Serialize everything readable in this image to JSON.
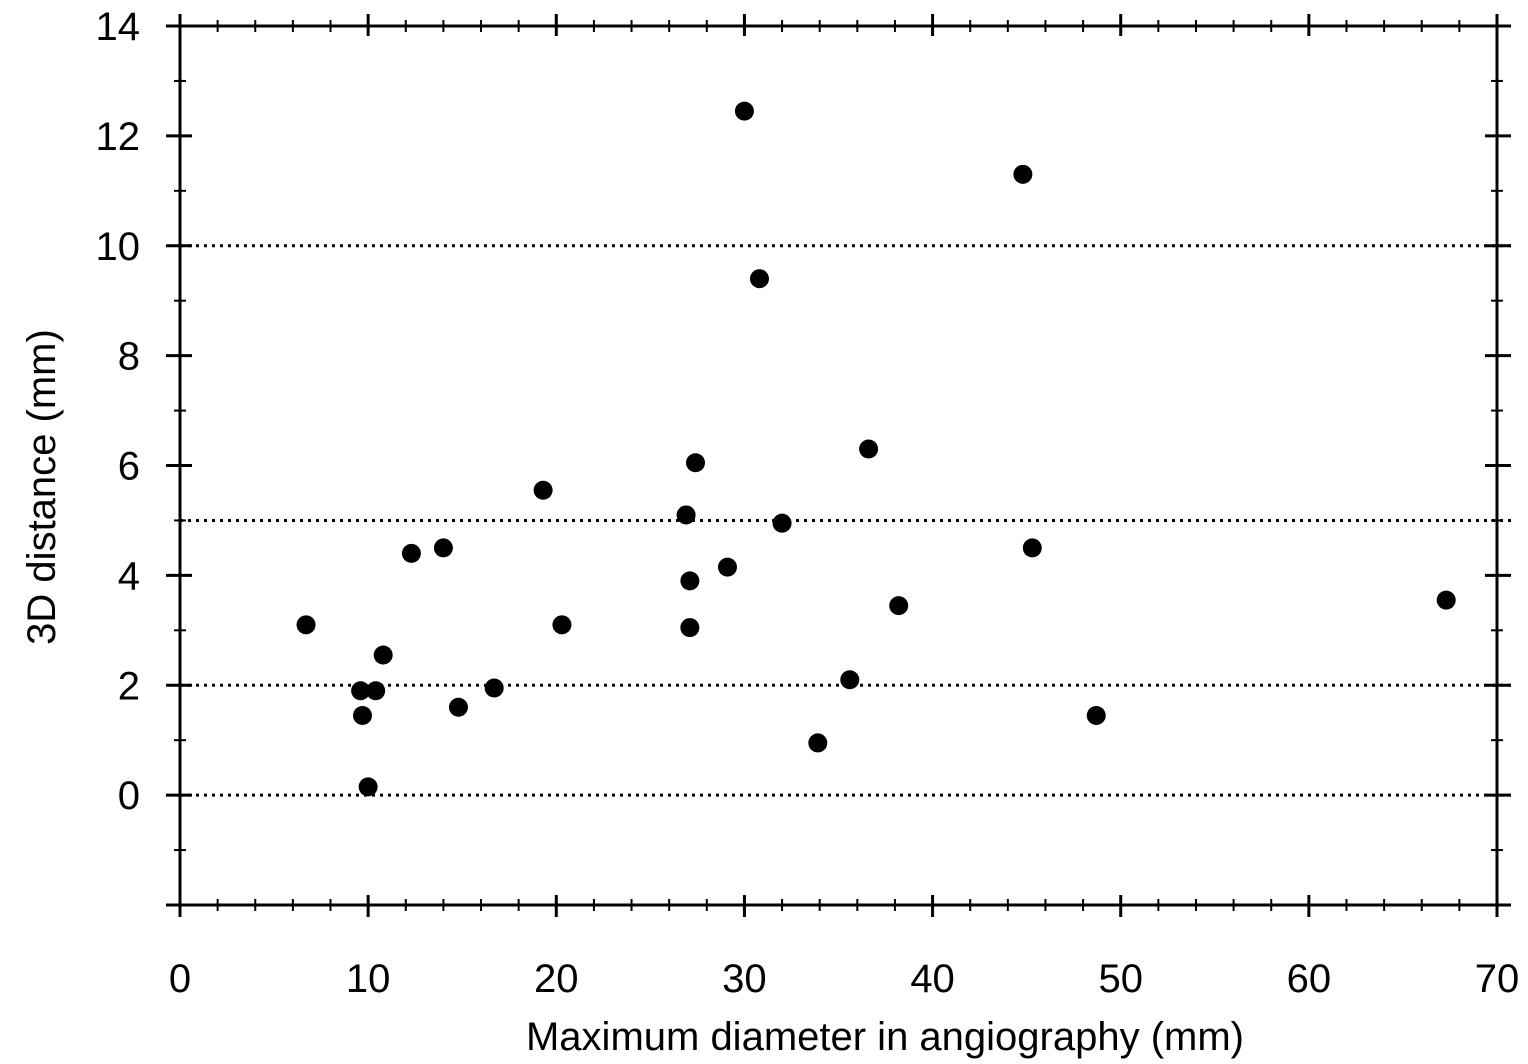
{
  "chart_data": {
    "type": "scatter",
    "title": "",
    "xlabel": "Maximum diameter in angiography (mm)",
    "ylabel": "3D distance (mm)",
    "xlim": [
      0,
      70
    ],
    "ylim": [
      -2,
      14
    ],
    "x_ticks": [
      0,
      10,
      20,
      30,
      40,
      50,
      60,
      70
    ],
    "y_ticks": [
      0,
      2,
      4,
      6,
      8,
      10,
      12,
      14
    ],
    "x_tick_labels": [
      "0",
      "10",
      "20",
      "30",
      "40",
      "50",
      "60",
      "70"
    ],
    "y_tick_labels": [
      "0",
      "2",
      "4",
      "6",
      "8",
      "10",
      "12",
      "14"
    ],
    "reference_lines_y": [
      0,
      2,
      5,
      10
    ],
    "reference_line_style": "dotted",
    "grid": false,
    "marker_color": "#000000",
    "points": [
      {
        "x": 6.7,
        "y": 3.1
      },
      {
        "x": 9.6,
        "y": 1.9
      },
      {
        "x": 9.7,
        "y": 1.45
      },
      {
        "x": 10.0,
        "y": 0.15
      },
      {
        "x": 10.4,
        "y": 1.9
      },
      {
        "x": 10.8,
        "y": 2.55
      },
      {
        "x": 12.3,
        "y": 4.4
      },
      {
        "x": 14.0,
        "y": 4.5
      },
      {
        "x": 14.8,
        "y": 1.6
      },
      {
        "x": 16.7,
        "y": 1.95
      },
      {
        "x": 19.3,
        "y": 5.55
      },
      {
        "x": 20.3,
        "y": 3.1
      },
      {
        "x": 26.9,
        "y": 5.1
      },
      {
        "x": 27.1,
        "y": 3.9
      },
      {
        "x": 27.1,
        "y": 3.05
      },
      {
        "x": 27.4,
        "y": 6.05
      },
      {
        "x": 29.1,
        "y": 4.15
      },
      {
        "x": 30.0,
        "y": 12.45
      },
      {
        "x": 30.8,
        "y": 9.4
      },
      {
        "x": 32.0,
        "y": 4.95
      },
      {
        "x": 33.9,
        "y": 0.95
      },
      {
        "x": 35.6,
        "y": 2.1
      },
      {
        "x": 36.6,
        "y": 6.3
      },
      {
        "x": 38.2,
        "y": 3.45
      },
      {
        "x": 44.8,
        "y": 11.3
      },
      {
        "x": 45.3,
        "y": 4.5
      },
      {
        "x": 48.7,
        "y": 1.45
      },
      {
        "x": 67.3,
        "y": 3.55
      }
    ]
  }
}
